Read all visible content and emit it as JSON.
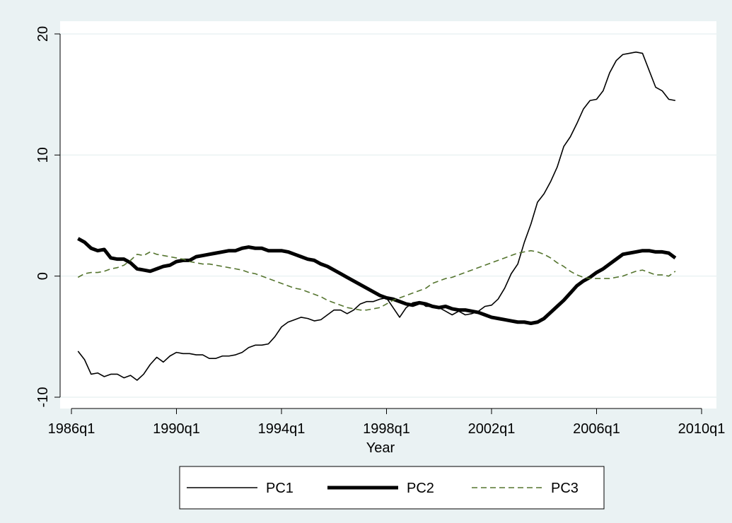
{
  "chart_data": {
    "type": "line",
    "xlabel": "Year",
    "x": [
      "1986q2",
      "1986q3",
      "1986q4",
      "1987q1",
      "1987q2",
      "1987q3",
      "1987q4",
      "1988q1",
      "1988q2",
      "1988q3",
      "1988q4",
      "1989q1",
      "1989q2",
      "1989q3",
      "1989q4",
      "1990q1",
      "1990q2",
      "1990q3",
      "1990q4",
      "1991q1",
      "1991q2",
      "1991q3",
      "1991q4",
      "1992q1",
      "1992q2",
      "1992q3",
      "1992q4",
      "1993q1",
      "1993q2",
      "1993q3",
      "1993q4",
      "1994q1",
      "1994q2",
      "1994q3",
      "1994q4",
      "1995q1",
      "1995q2",
      "1995q3",
      "1995q4",
      "1996q1",
      "1996q2",
      "1996q3",
      "1996q4",
      "1997q1",
      "1997q2",
      "1997q3",
      "1997q4",
      "1998q1",
      "1998q2",
      "1998q3",
      "1998q4",
      "1999q1",
      "1999q2",
      "1999q3",
      "1999q4",
      "2000q1",
      "2000q2",
      "2000q3",
      "2000q4",
      "2001q1",
      "2001q2",
      "2001q3",
      "2001q4",
      "2002q1",
      "2002q2",
      "2002q3",
      "2002q4",
      "2003q1",
      "2003q2",
      "2003q3",
      "2003q4",
      "2004q1",
      "2004q2",
      "2004q3",
      "2004q4",
      "2005q1",
      "2005q2",
      "2005q3",
      "2005q4",
      "2006q1",
      "2006q2",
      "2006q3",
      "2006q4",
      "2007q1",
      "2007q2",
      "2007q3",
      "2007q4",
      "2008q1",
      "2008q2",
      "2008q3",
      "2008q4",
      "2009q1"
    ],
    "series": [
      {
        "name": "PC1",
        "color": "#000000",
        "style": "solid",
        "values": [
          -6.2,
          -6.9,
          -8.1,
          -8.0,
          -8.3,
          -8.1,
          -8.1,
          -8.4,
          -8.2,
          -8.6,
          -8.1,
          -7.3,
          -6.7,
          -7.1,
          -6.6,
          -6.3,
          -6.4,
          -6.4,
          -6.5,
          -6.5,
          -6.8,
          -6.8,
          -6.6,
          -6.6,
          -6.5,
          -6.3,
          -5.9,
          -5.7,
          -5.7,
          -5.6,
          -5.0,
          -4.2,
          -3.8,
          -3.6,
          -3.4,
          -3.5,
          -3.7,
          -3.6,
          -3.2,
          -2.8,
          -2.8,
          -3.1,
          -2.8,
          -2.3,
          -2.1,
          -2.1,
          -1.9,
          -1.8,
          -2.6,
          -3.4,
          -2.6,
          -2.2,
          -2.1,
          -2.5,
          -2.5,
          -2.6,
          -2.9,
          -3.2,
          -2.9,
          -3.2,
          -3.1,
          -2.9,
          -2.5,
          -2.4,
          -1.9,
          -1.0,
          0.2,
          1.0,
          2.8,
          4.3,
          6.1,
          6.8,
          7.8,
          9.0,
          10.7,
          11.5,
          12.6,
          13.8,
          14.5,
          14.6,
          15.3,
          16.8,
          17.8,
          18.3,
          18.4,
          18.5,
          18.4,
          17.0,
          15.6,
          15.3,
          14.6,
          14.5
        ]
      },
      {
        "name": "PC2",
        "color": "#000000",
        "style": "thick",
        "values": [
          3.1,
          2.8,
          2.3,
          2.1,
          2.2,
          1.5,
          1.4,
          1.4,
          1.1,
          0.6,
          0.5,
          0.4,
          0.6,
          0.8,
          0.9,
          1.2,
          1.3,
          1.3,
          1.6,
          1.7,
          1.8,
          1.9,
          2.0,
          2.1,
          2.1,
          2.3,
          2.4,
          2.3,
          2.3,
          2.1,
          2.1,
          2.1,
          2.0,
          1.8,
          1.6,
          1.4,
          1.3,
          1.0,
          0.8,
          0.5,
          0.2,
          -0.1,
          -0.4,
          -0.7,
          -1.0,
          -1.3,
          -1.6,
          -1.8,
          -1.9,
          -2.1,
          -2.3,
          -2.4,
          -2.2,
          -2.3,
          -2.5,
          -2.6,
          -2.5,
          -2.7,
          -2.8,
          -2.8,
          -2.9,
          -3.0,
          -3.2,
          -3.4,
          -3.5,
          -3.6,
          -3.7,
          -3.8,
          -3.8,
          -3.9,
          -3.8,
          -3.5,
          -3.0,
          -2.5,
          -2.0,
          -1.4,
          -0.8,
          -0.4,
          -0.1,
          0.3,
          0.6,
          1.0,
          1.4,
          1.8,
          1.9,
          2.0,
          2.1,
          2.1,
          2.0,
          2.0,
          1.9,
          1.5
        ]
      },
      {
        "name": "PC3",
        "color": "#55752f",
        "style": "dashed",
        "values": [
          -0.1,
          0.2,
          0.3,
          0.3,
          0.4,
          0.6,
          0.7,
          0.9,
          1.3,
          1.8,
          1.7,
          2.0,
          1.8,
          1.7,
          1.6,
          1.5,
          1.4,
          1.2,
          1.1,
          1.0,
          1.0,
          0.9,
          0.8,
          0.7,
          0.6,
          0.5,
          0.3,
          0.2,
          0.0,
          -0.2,
          -0.4,
          -0.6,
          -0.8,
          -1.0,
          -1.1,
          -1.3,
          -1.5,
          -1.7,
          -2.0,
          -2.2,
          -2.4,
          -2.6,
          -2.7,
          -2.8,
          -2.8,
          -2.7,
          -2.6,
          -2.3,
          -2.0,
          -1.8,
          -1.6,
          -1.4,
          -1.2,
          -1.0,
          -0.6,
          -0.4,
          -0.2,
          -0.1,
          0.1,
          0.3,
          0.5,
          0.7,
          0.9,
          1.1,
          1.3,
          1.5,
          1.7,
          1.9,
          2.0,
          2.1,
          2.0,
          1.8,
          1.5,
          1.1,
          0.8,
          0.4,
          0.1,
          -0.1,
          -0.2,
          -0.2,
          -0.2,
          -0.2,
          -0.1,
          0.0,
          0.2,
          0.4,
          0.5,
          0.3,
          0.1,
          0.1,
          0.0,
          0.4
        ]
      }
    ],
    "xlim": [
      "1986q1",
      "2010q1"
    ],
    "xticks": [
      "1986q1",
      "1990q1",
      "1994q1",
      "1998q1",
      "2002q1",
      "2006q1",
      "2010q1"
    ],
    "ylim": [
      -10,
      20
    ],
    "yticks": [
      -10,
      0,
      10,
      20
    ],
    "grid": true,
    "legend": "bottom"
  }
}
